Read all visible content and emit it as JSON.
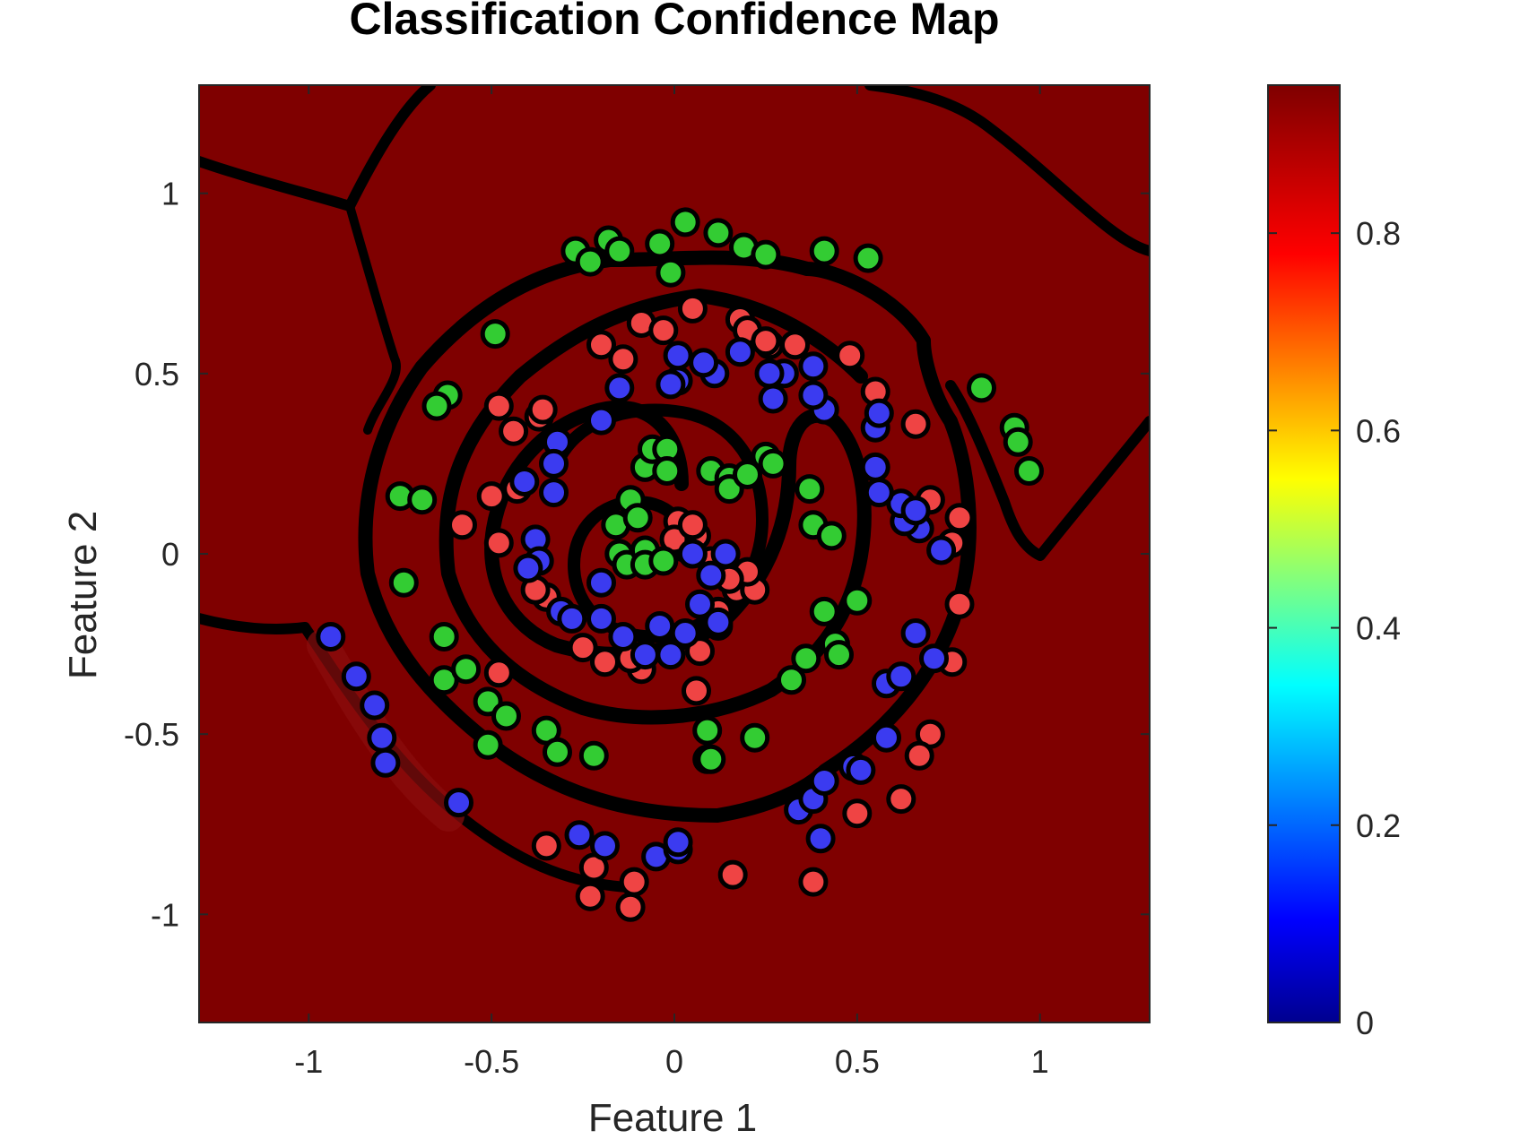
{
  "chart_data": {
    "type": "scatter",
    "title": "Classification Confidence Map",
    "xlabel": "Feature 1",
    "ylabel": "Feature 2",
    "xlim": [
      -1.3,
      1.3
    ],
    "ylim": [
      -1.3,
      1.3
    ],
    "xticks": [
      -1,
      -0.5,
      0,
      0.5,
      1
    ],
    "xtick_labels": [
      "-1",
      "-0.5",
      "0",
      "0.5",
      "1"
    ],
    "yticks": [
      -1,
      -0.5,
      0,
      0.5,
      1
    ],
    "ytick_labels": [
      "-1",
      "-0.5",
      "0",
      "0.5",
      "1"
    ],
    "background": "filled confidence contour map, dominant dark red (~0.95)",
    "grid": false,
    "colorbar": {
      "colormap": "jet",
      "range": [
        0,
        0.95
      ],
      "ticks": [
        0,
        0.2,
        0.4,
        0.6,
        0.8
      ],
      "tick_labels": [
        "0",
        "0.2",
        "0.4",
        "0.6",
        "0.8"
      ]
    },
    "colors": {
      "class_red": "#ef4444",
      "class_green": "#33cc33",
      "class_blue": "#3b3bf0",
      "background_red": "#7f0000",
      "boundary": "#000000"
    },
    "series": [
      {
        "color": "#ef4444",
        "points": [
          [
            0.05,
            0.68
          ],
          [
            0.18,
            0.65
          ],
          [
            0.26,
            0.58
          ],
          [
            0.33,
            0.58
          ],
          [
            0.48,
            0.55
          ],
          [
            0.55,
            0.45
          ],
          [
            0.66,
            0.36
          ],
          [
            0.7,
            0.15
          ],
          [
            0.78,
            0.1
          ],
          [
            0.76,
            0.03
          ],
          [
            0.78,
            -0.14
          ],
          [
            0.76,
            -0.3
          ],
          [
            0.7,
            -0.5
          ],
          [
            0.67,
            -0.56
          ],
          [
            0.62,
            -0.68
          ],
          [
            0.5,
            -0.72
          ],
          [
            0.38,
            -0.91
          ],
          [
            0.16,
            -0.89
          ],
          [
            -0.11,
            -0.91
          ],
          [
            -0.12,
            -0.98
          ],
          [
            -0.23,
            -0.95
          ],
          [
            -0.22,
            -0.87
          ],
          [
            -0.35,
            -0.81
          ],
          [
            -0.48,
            -0.33
          ],
          [
            -0.58,
            0.08
          ],
          [
            -0.48,
            0.03
          ],
          [
            -0.5,
            0.16
          ],
          [
            -0.43,
            0.18
          ],
          [
            -0.44,
            0.34
          ],
          [
            -0.48,
            0.41
          ],
          [
            -0.37,
            0.38
          ],
          [
            -0.36,
            0.4
          ],
          [
            -0.2,
            0.58
          ],
          [
            -0.14,
            0.54
          ],
          [
            -0.09,
            0.64
          ],
          [
            -0.03,
            0.62
          ],
          [
            -0.35,
            -0.12
          ],
          [
            -0.38,
            -0.1
          ],
          [
            -0.25,
            -0.26
          ],
          [
            -0.19,
            -0.3
          ],
          [
            -0.09,
            -0.32
          ],
          [
            0.07,
            -0.27
          ],
          [
            0.12,
            -0.2
          ],
          [
            0.12,
            -0.16
          ],
          [
            0.17,
            -0.1
          ],
          [
            0.22,
            -0.1
          ],
          [
            0.2,
            -0.05
          ],
          [
            0.1,
            -0.02
          ],
          [
            0.06,
            0.05
          ],
          [
            0.01,
            0.09
          ],
          [
            0.0,
            0.04
          ],
          [
            0.06,
            -0.38
          ],
          [
            0.2,
            0.62
          ],
          [
            0.25,
            0.59
          ],
          [
            0.15,
            -0.07
          ],
          [
            -0.12,
            -0.29
          ],
          [
            0.05,
            0.08
          ]
        ]
      },
      {
        "color": "#33cc33",
        "points": [
          [
            -0.27,
            0.84
          ],
          [
            -0.23,
            0.81
          ],
          [
            -0.18,
            0.87
          ],
          [
            -0.15,
            0.84
          ],
          [
            -0.04,
            0.86
          ],
          [
            -0.01,
            0.78
          ],
          [
            0.03,
            0.92
          ],
          [
            0.12,
            0.89
          ],
          [
            0.19,
            0.85
          ],
          [
            0.25,
            0.83
          ],
          [
            0.41,
            0.84
          ],
          [
            0.53,
            0.82
          ],
          [
            0.84,
            0.46
          ],
          [
            0.93,
            0.35
          ],
          [
            0.94,
            0.31
          ],
          [
            0.97,
            0.23
          ],
          [
            -0.49,
            0.61
          ],
          [
            -0.62,
            0.44
          ],
          [
            -0.65,
            0.41
          ],
          [
            -0.75,
            0.16
          ],
          [
            -0.69,
            0.15
          ],
          [
            -0.74,
            -0.08
          ],
          [
            -0.63,
            -0.23
          ],
          [
            -0.63,
            -0.35
          ],
          [
            -0.57,
            -0.32
          ],
          [
            -0.51,
            -0.41
          ],
          [
            -0.46,
            -0.45
          ],
          [
            -0.51,
            -0.53
          ],
          [
            -0.35,
            -0.49
          ],
          [
            -0.32,
            -0.55
          ],
          [
            -0.22,
            -0.56
          ],
          [
            0.09,
            -0.49
          ],
          [
            0.09,
            -0.57
          ],
          [
            0.22,
            -0.51
          ],
          [
            0.32,
            -0.35
          ],
          [
            0.36,
            -0.29
          ],
          [
            0.41,
            -0.16
          ],
          [
            0.44,
            -0.25
          ],
          [
            0.45,
            -0.28
          ],
          [
            0.5,
            -0.13
          ],
          [
            0.37,
            0.18
          ],
          [
            0.38,
            0.08
          ],
          [
            0.43,
            0.05
          ],
          [
            0.25,
            0.27
          ],
          [
            0.27,
            0.25
          ],
          [
            0.1,
            0.23
          ],
          [
            0.15,
            0.21
          ],
          [
            0.15,
            0.18
          ],
          [
            0.2,
            0.22
          ],
          [
            -0.08,
            0.24
          ],
          [
            -0.06,
            0.29
          ],
          [
            -0.02,
            0.29
          ],
          [
            -0.02,
            0.23
          ],
          [
            -0.12,
            0.15
          ],
          [
            -0.16,
            0.08
          ],
          [
            -0.15,
            0.0
          ],
          [
            -0.13,
            -0.03
          ],
          [
            -0.08,
            0.01
          ],
          [
            -0.08,
            -0.03
          ],
          [
            -0.03,
            -0.02
          ],
          [
            -0.1,
            0.1
          ],
          [
            0.1,
            -0.57
          ]
        ]
      },
      {
        "color": "#3b3bf0",
        "points": [
          [
            -0.94,
            -0.23
          ],
          [
            -0.87,
            -0.34
          ],
          [
            -0.82,
            -0.42
          ],
          [
            -0.8,
            -0.51
          ],
          [
            -0.79,
            -0.58
          ],
          [
            -0.59,
            -0.69
          ],
          [
            -0.26,
            -0.78
          ],
          [
            -0.19,
            -0.81
          ],
          [
            -0.05,
            -0.84
          ],
          [
            0.01,
            -0.82
          ],
          [
            0.01,
            -0.8
          ],
          [
            0.34,
            -0.71
          ],
          [
            0.38,
            -0.68
          ],
          [
            0.41,
            -0.63
          ],
          [
            0.4,
            -0.79
          ],
          [
            0.49,
            -0.59
          ],
          [
            0.51,
            -0.6
          ],
          [
            0.58,
            -0.51
          ],
          [
            0.58,
            -0.36
          ],
          [
            0.62,
            -0.34
          ],
          [
            0.66,
            -0.22
          ],
          [
            0.71,
            -0.29
          ],
          [
            0.73,
            0.01
          ],
          [
            0.67,
            0.07
          ],
          [
            0.63,
            0.09
          ],
          [
            0.62,
            0.14
          ],
          [
            0.66,
            0.12
          ],
          [
            0.56,
            0.17
          ],
          [
            0.55,
            0.24
          ],
          [
            0.55,
            0.35
          ],
          [
            0.56,
            0.39
          ],
          [
            0.41,
            0.4
          ],
          [
            0.38,
            0.44
          ],
          [
            0.38,
            0.52
          ],
          [
            0.3,
            0.5
          ],
          [
            0.26,
            0.5
          ],
          [
            0.27,
            0.43
          ],
          [
            0.18,
            0.56
          ],
          [
            0.11,
            0.5
          ],
          [
            0.08,
            0.53
          ],
          [
            0.01,
            0.55
          ],
          [
            0.01,
            0.48
          ],
          [
            -0.01,
            0.47
          ],
          [
            -0.15,
            0.46
          ],
          [
            -0.2,
            0.37
          ],
          [
            -0.32,
            0.31
          ],
          [
            -0.33,
            0.25
          ],
          [
            -0.33,
            0.17
          ],
          [
            -0.41,
            0.2
          ],
          [
            -0.38,
            0.04
          ],
          [
            -0.37,
            -0.02
          ],
          [
            -0.4,
            -0.04
          ],
          [
            -0.31,
            -0.16
          ],
          [
            -0.28,
            -0.18
          ],
          [
            -0.2,
            -0.08
          ],
          [
            -0.2,
            -0.18
          ],
          [
            -0.14,
            -0.23
          ],
          [
            -0.08,
            -0.28
          ],
          [
            -0.04,
            -0.2
          ],
          [
            -0.01,
            -0.28
          ],
          [
            0.03,
            -0.22
          ],
          [
            0.05,
            0.0
          ],
          [
            0.07,
            -0.14
          ],
          [
            0.1,
            -0.06
          ],
          [
            0.14,
            0.0
          ],
          [
            0.12,
            -0.19
          ]
        ]
      }
    ]
  }
}
